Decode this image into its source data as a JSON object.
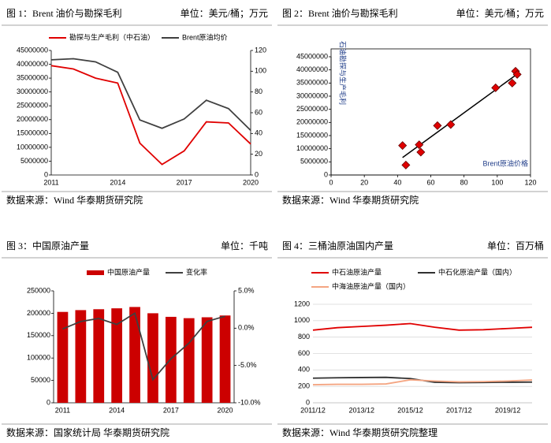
{
  "chart_data": [
    {
      "type": "line",
      "title": "图 1：Brent 油价与勘探毛利",
      "unit": "单位：美元/桶；万元",
      "source": "数据来源：Wind 华泰期货研究院",
      "categories": [
        "2011",
        null,
        null,
        "2014",
        null,
        null,
        "2017",
        null,
        null,
        "2020"
      ],
      "series": [
        {
          "name": "勘探与生产毛利（中石油）",
          "color": "#e00000",
          "values": [
            39500000,
            38300000,
            35000000,
            33200000,
            11500000,
            3800000,
            8700000,
            19200000,
            18800000,
            11200000
          ]
        },
        {
          "name": "Brent原油均价",
          "color": "#404040",
          "axis": "y2",
          "values": [
            111,
            112,
            109,
            99,
            53,
            45,
            54,
            72,
            64,
            43
          ]
        }
      ],
      "ylim": [
        0,
        45000000
      ],
      "yticks": [
        0,
        5000000,
        10000000,
        15000000,
        20000000,
        25000000,
        30000000,
        35000000,
        40000000,
        45000000
      ],
      "y2lim": [
        0,
        120
      ],
      "y2ticks": [
        0,
        20,
        40,
        60,
        80,
        100,
        120
      ],
      "grid": false
    },
    {
      "type": "scatter",
      "title": "图 2：Brent 油价与勘探毛利",
      "unit": "单位：美元/桶；万元",
      "source": "数据来源：Wind 华泰期货研究院",
      "x_label": "Brent原油价格",
      "y_label": "石油勘探与生产毛利",
      "color": "#e00000",
      "trendline": true,
      "x": [
        111,
        112,
        109,
        99,
        53,
        45,
        54,
        72,
        64,
        43
      ],
      "values": [
        39500000,
        38300000,
        35000000,
        33200000,
        11500000,
        3800000,
        8700000,
        19200000,
        18800000,
        11200000
      ],
      "xlim": [
        0,
        120
      ],
      "xticks": [
        0,
        20,
        40,
        60,
        80,
        100,
        120
      ],
      "ylim": [
        0,
        45000000
      ],
      "yticks": [
        0,
        5000000,
        10000000,
        15000000,
        20000000,
        25000000,
        30000000,
        35000000,
        40000000,
        45000000
      ],
      "grid": false
    },
    {
      "type": "bar",
      "title": "图 3：中国原油产量",
      "unit": "单位：千吨",
      "source": "数据来源：国家统计局 华泰期货研究院",
      "categories": [
        "2011",
        null,
        null,
        "2014",
        null,
        null,
        "2017",
        null,
        null,
        "2020"
      ],
      "series": [
        {
          "name": "中国原油产量",
          "color": "#cc0000",
          "values": [
            203000,
            207000,
            209000,
            211000,
            214000,
            200000,
            192000,
            189000,
            191000,
            195000
          ]
        },
        {
          "name": "变化率",
          "color": "#404040",
          "axis": "y2",
          "type": "line",
          "values": [
            -0.1,
            0.9,
            1.3,
            0.5,
            2.0,
            -6.9,
            -4.1,
            -2.0,
            0.9,
            1.6
          ]
        }
      ],
      "ylim": [
        0,
        250000
      ],
      "yticks": [
        0,
        50000,
        100000,
        150000,
        200000,
        250000
      ],
      "y2lim": [
        -10,
        5
      ],
      "y2ticks": [
        {
          "value": -10,
          "label": "-10.0%"
        },
        {
          "value": -5,
          "label": "-5.0%"
        },
        {
          "value": 0,
          "label": "0.0%"
        },
        {
          "value": 5,
          "label": "5.0%"
        }
      ],
      "grid": false
    },
    {
      "type": "line",
      "title": "图 4：三桶油原油国内产量",
      "unit": "单位：百万桶",
      "source": "数据来源：Wind 华泰期货研究院整理",
      "categories": [
        "2011/12",
        null,
        "2013/12",
        null,
        "2015/12",
        null,
        "2017/12",
        null,
        "2019/12",
        null
      ],
      "series": [
        {
          "name": "中石油原油产量",
          "color": "#e00000",
          "values": [
            885,
            915,
            930,
            945,
            965,
            920,
            885,
            890,
            905,
            920
          ]
        },
        {
          "name": "中石化原油产量（国内）",
          "color": "#303030",
          "values": [
            300,
            305,
            308,
            310,
            295,
            250,
            245,
            248,
            250,
            252
          ]
        },
        {
          "name": "中海油原油产量（国内）",
          "color": "#f4a582",
          "values": [
            220,
            225,
            225,
            230,
            280,
            265,
            255,
            258,
            265,
            278
          ]
        }
      ],
      "ylim": [
        0,
        1200
      ],
      "yticks": [
        0,
        200,
        400,
        600,
        800,
        1000,
        1200
      ],
      "grid": true
    }
  ]
}
